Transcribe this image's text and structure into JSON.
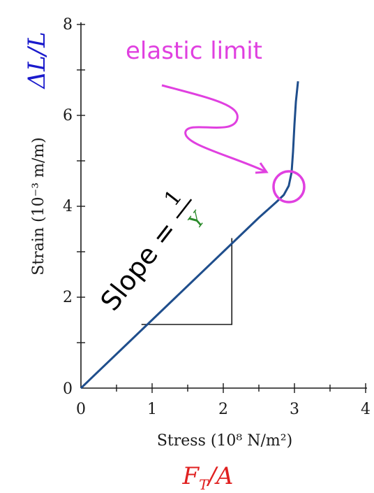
{
  "chart_data": {
    "type": "line",
    "xlabel": "Stress (10⁸ N/m²)",
    "ylabel": "Strain (10⁻³ m/m)",
    "xlim": [
      0,
      4
    ],
    "ylim": [
      0,
      8
    ],
    "x_ticks": [
      "0",
      "1",
      "2",
      "3",
      "4"
    ],
    "y_ticks": [
      "0",
      "2",
      "4",
      "6",
      "8"
    ],
    "grid": false,
    "series": [
      {
        "color": "#1f4e8c",
        "points": [
          [
            0,
            0
          ],
          [
            0.5,
            0.75
          ],
          [
            1.0,
            1.5
          ],
          [
            1.5,
            2.25
          ],
          [
            2.0,
            3.0
          ],
          [
            2.5,
            3.75
          ],
          [
            2.75,
            4.1
          ],
          [
            2.85,
            4.25
          ],
          [
            2.92,
            4.45
          ],
          [
            2.96,
            4.75
          ],
          [
            2.98,
            5.2
          ],
          [
            3.0,
            5.8
          ],
          [
            3.02,
            6.3
          ],
          [
            3.05,
            6.75
          ]
        ]
      }
    ],
    "slope_triangle": {
      "x0": 0.85,
      "x1": 2.12,
      "y0": 1.4,
      "y1": 3.3
    },
    "annotations": {
      "elastic_limit": {
        "text": "elastic limit",
        "color": "#e040e0",
        "at": [
          2.95,
          4.45
        ]
      },
      "slope": {
        "text": "Slope =",
        "numerator": "1",
        "denominator": "Y",
        "denominator_color": "#2a8a2a"
      }
    },
    "formula_y": {
      "text": "ΔL/L",
      "color": "#1a1acc"
    },
    "formula_x": {
      "text": "F_T/A",
      "color": "#e02020"
    }
  }
}
